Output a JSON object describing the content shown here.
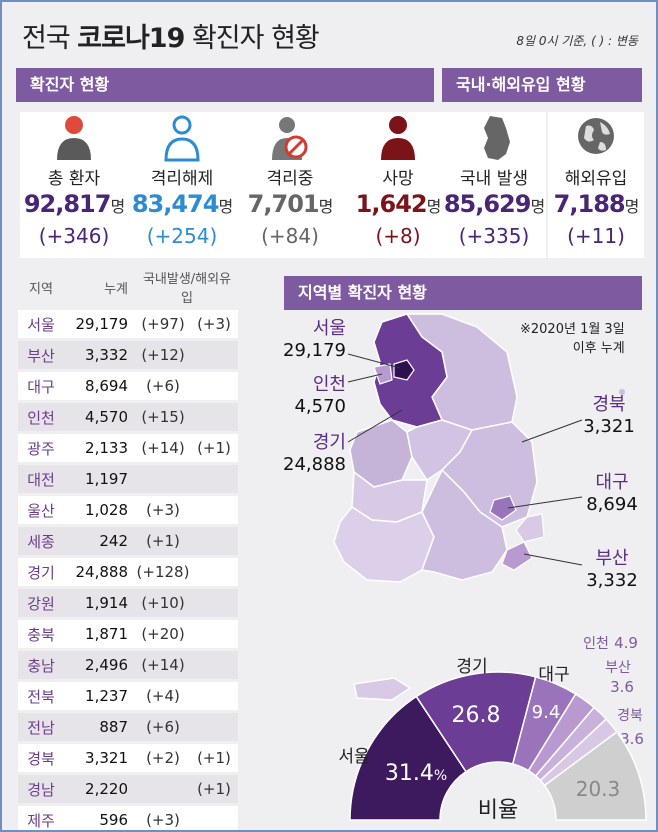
{
  "header": {
    "title_plain": "전국",
    "title_bold": "코로나19",
    "title_rest": "확진자 현황",
    "basis": "8일 0시 기준, ( ) : 변동"
  },
  "section_headers": {
    "confirmed": "확진자 현황",
    "import": "국내·해외유입 현황",
    "regional": "지역별 확진자 현황"
  },
  "status_cards": [
    {
      "label": "총 환자",
      "value": "92,817",
      "unit": "명",
      "change": "(+346)",
      "color": "#4a2475",
      "icon": "person-icon"
    },
    {
      "label": "격리해제",
      "value": "83,474",
      "unit": "명",
      "change": "(+254)",
      "color": "#2d8bd1",
      "icon": "person-outline-icon"
    },
    {
      "label": "격리중",
      "value": "7,701",
      "unit": "명",
      "change": "(+84)",
      "color": "#666666",
      "icon": "quarantine-icon"
    },
    {
      "label": "사망",
      "value": "1,642",
      "unit": "명",
      "change": "(+8)",
      "color": "#7a1418",
      "icon": "person-dark-icon"
    }
  ],
  "import_cards": [
    {
      "label": "국내 발생",
      "value": "85,629",
      "unit": "명",
      "change": "(+335)",
      "color": "#4a2475",
      "icon": "korea-map-icon"
    },
    {
      "label": "해외유입",
      "value": "7,188",
      "unit": "명",
      "change": "(+11)",
      "color": "#4a2475",
      "icon": "globe-icon"
    }
  ],
  "regional_table": {
    "columns": [
      "지역",
      "누계",
      "국내발생/해외유입"
    ],
    "rows": [
      {
        "region": "서울",
        "total": "29,179",
        "domestic": "(+97)",
        "overseas": "(+3)"
      },
      {
        "region": "부산",
        "total": "3,332",
        "domestic": "(+12)",
        "overseas": ""
      },
      {
        "region": "대구",
        "total": "8,694",
        "domestic": "(+6)",
        "overseas": ""
      },
      {
        "region": "인천",
        "total": "4,570",
        "domestic": "(+15)",
        "overseas": ""
      },
      {
        "region": "광주",
        "total": "2,133",
        "domestic": "(+14)",
        "overseas": "(+1)"
      },
      {
        "region": "대전",
        "total": "1,197",
        "domestic": "",
        "overseas": ""
      },
      {
        "region": "울산",
        "total": "1,028",
        "domestic": "(+3)",
        "overseas": ""
      },
      {
        "region": "세종",
        "total": "242",
        "domestic": "(+1)",
        "overseas": ""
      },
      {
        "region": "경기",
        "total": "24,888",
        "domestic": "(+128)",
        "overseas": ""
      },
      {
        "region": "강원",
        "total": "1,914",
        "domestic": "(+10)",
        "overseas": ""
      },
      {
        "region": "충북",
        "total": "1,871",
        "domestic": "(+20)",
        "overseas": ""
      },
      {
        "region": "충남",
        "total": "2,496",
        "domestic": "(+14)",
        "overseas": ""
      },
      {
        "region": "전북",
        "total": "1,237",
        "domestic": "(+4)",
        "overseas": ""
      },
      {
        "region": "전남",
        "total": "887",
        "domestic": "(+6)",
        "overseas": ""
      },
      {
        "region": "경북",
        "total": "3,321",
        "domestic": "(+2)",
        "overseas": "(+1)"
      },
      {
        "region": "경남",
        "total": "2,220",
        "domestic": "",
        "overseas": "(+1)"
      },
      {
        "region": "제주",
        "total": "596",
        "domestic": "(+3)",
        "overseas": ""
      }
    ]
  },
  "map": {
    "note_line1": "※2020년 1월 3일",
    "note_line2": "이후 누계",
    "labels": [
      {
        "region": "서울",
        "value": "29,179"
      },
      {
        "region": "인천",
        "value": "4,570"
      },
      {
        "region": "경기",
        "value": "24,888"
      },
      {
        "region": "경북",
        "value": "3,321"
      },
      {
        "region": "대구",
        "value": "8,694"
      },
      {
        "region": "부산",
        "value": "3,332"
      }
    ]
  },
  "chart_data": {
    "type": "pie",
    "title": "비율",
    "slices": [
      {
        "label": "서울",
        "value": 31.4,
        "value_text": "31.4",
        "suffix": "%",
        "color": "#3d1a5e"
      },
      {
        "label": "경기",
        "value": 26.8,
        "value_text": "26.8",
        "suffix": "",
        "color": "#6b3d95"
      },
      {
        "label": "대구",
        "value": 9.4,
        "value_text": "9.4",
        "suffix": "",
        "color": "#9a74bb"
      },
      {
        "label": "인천",
        "value": 4.9,
        "value_text": "4.9",
        "suffix": "",
        "color": "#b89ad0"
      },
      {
        "label": "부산",
        "value": 3.6,
        "value_text": "3.6",
        "suffix": "",
        "color": "#c8b2db"
      },
      {
        "label": "경북",
        "value": 3.6,
        "value_text": "3.6",
        "suffix": "",
        "color": "#d8c8e6"
      },
      {
        "label": "",
        "value": 20.3,
        "value_text": "20.3",
        "suffix": "",
        "color": "#cfcfcf"
      }
    ]
  },
  "colors": {
    "accent": "#7e5aa0",
    "dark": "#4a2475"
  }
}
